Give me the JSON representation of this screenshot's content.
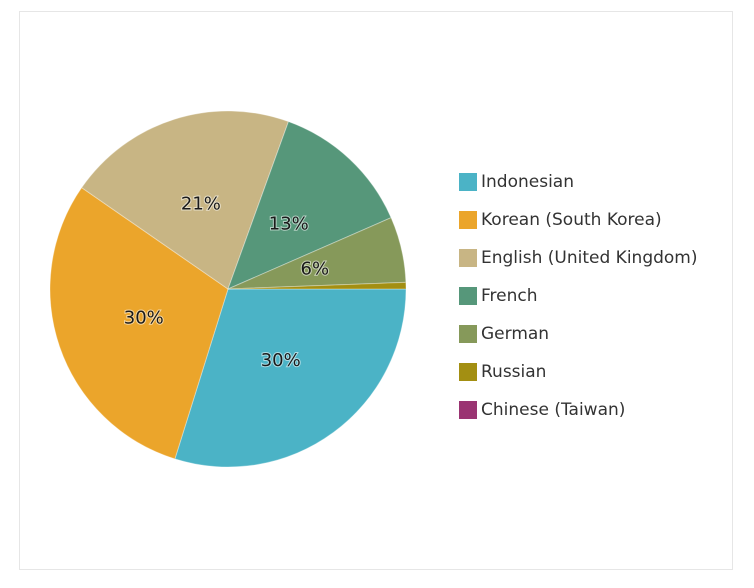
{
  "chart_data": {
    "type": "pie",
    "slices": [
      {
        "label": "Indonesian",
        "value": 30,
        "display": "30%",
        "color": "#4bb3c6"
      },
      {
        "label": "Korean (South Korea)",
        "value": 30,
        "display": "30%",
        "color": "#eba52b"
      },
      {
        "label": "English (United Kingdom)",
        "value": 21,
        "display": "21%",
        "color": "#c8b584"
      },
      {
        "label": "French",
        "value": 13,
        "display": "13%",
        "color": "#56977a"
      },
      {
        "label": "German",
        "value": 6,
        "display": "6%",
        "color": "#86995a"
      },
      {
        "label": "Russian",
        "value": 0.6,
        "display": "",
        "color": "#a38f12"
      },
      {
        "label": "Chinese (Taiwan)",
        "value": 0,
        "display": "",
        "color": "#9a3472"
      }
    ],
    "legend_position": "right"
  }
}
